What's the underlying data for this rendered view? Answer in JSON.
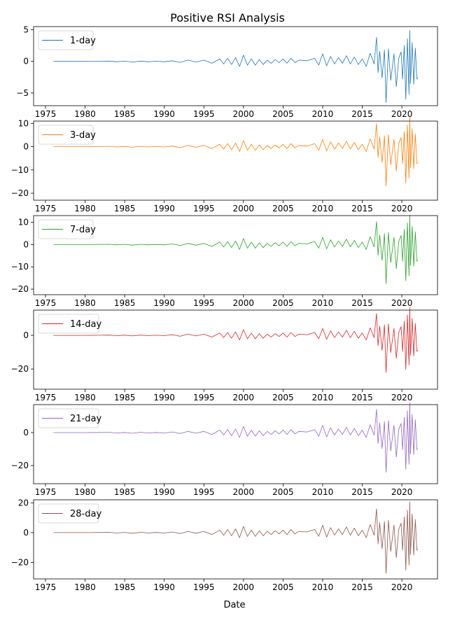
{
  "figure": {
    "title": "Positive RSI Analysis",
    "xlabel": "Date"
  },
  "chart_data": [
    {
      "type": "line",
      "series": [
        {
          "name": "1-day",
          "color": "#1f77b4",
          "scale": 1
        }
      ],
      "x_ticks": [
        "1975",
        "1980",
        "1985",
        "1990",
        "1995",
        "2000",
        "2005",
        "2010",
        "2015",
        "2020"
      ],
      "y_ticks": [
        5,
        0,
        -5
      ],
      "ylim": [
        -7,
        5.5
      ],
      "xlim": [
        1973.5,
        2024.5
      ],
      "legend_loc": "upper left",
      "grid": false
    },
    {
      "type": "line",
      "series": [
        {
          "name": "3-day",
          "color": "#ff7f0e",
          "scale": 2.6
        }
      ],
      "x_ticks": [
        "1975",
        "1980",
        "1985",
        "1990",
        "1995",
        "2000",
        "2005",
        "2010",
        "2015",
        "2020"
      ],
      "y_ticks": [
        10,
        0,
        -10,
        -20
      ],
      "ylim": [
        -23,
        11
      ],
      "xlim": [
        1973.5,
        2024.5
      ],
      "legend_loc": "upper left",
      "grid": false
    },
    {
      "type": "line",
      "series": [
        {
          "name": "7-day",
          "color": "#2ca02c",
          "scale": 2.7
        }
      ],
      "x_ticks": [
        "1975",
        "1980",
        "1985",
        "1990",
        "1995",
        "2000",
        "2005",
        "2010",
        "2015",
        "2020"
      ],
      "y_ticks": [
        10,
        0,
        -10,
        -20
      ],
      "ylim": [
        -22.5,
        13
      ],
      "xlim": [
        1973.5,
        2024.5
      ],
      "legend_loc": "upper left",
      "grid": false
    },
    {
      "type": "line",
      "series": [
        {
          "name": "14-day",
          "color": "#d62728",
          "scale": 3.4
        }
      ],
      "x_ticks": [
        "1975",
        "1980",
        "1985",
        "1990",
        "1995",
        "2000",
        "2005",
        "2010",
        "2015",
        "2020"
      ],
      "y_ticks": [
        0,
        -20
      ],
      "ylim": [
        -32,
        15
      ],
      "xlim": [
        1973.5,
        2024.5
      ],
      "legend_loc": "upper left",
      "grid": false
    },
    {
      "type": "line",
      "series": [
        {
          "name": "21-day",
          "color": "#9467bd",
          "scale": 3.7
        }
      ],
      "x_ticks": [
        "1975",
        "1980",
        "1985",
        "1990",
        "1995",
        "2000",
        "2005",
        "2010",
        "2015",
        "2020"
      ],
      "y_ticks": [
        0,
        -20
      ],
      "ylim": [
        -31,
        17
      ],
      "xlim": [
        1973.5,
        2024.5
      ],
      "legend_loc": "upper left",
      "grid": false
    },
    {
      "type": "line",
      "series": [
        {
          "name": "28-day",
          "color": "#8c564b",
          "scale": 4.2
        }
      ],
      "x_ticks": [
        "1975",
        "1980",
        "1985",
        "1990",
        "1995",
        "2000",
        "2005",
        "2010",
        "2015",
        "2020"
      ],
      "y_ticks": [
        20,
        0,
        -20
      ],
      "ylim": [
        -31,
        22
      ],
      "xlim": [
        1973.5,
        2024.5
      ],
      "legend_loc": "upper left",
      "grid": false
    }
  ],
  "base_series": {
    "x": [
      1976.0,
      1978.0,
      1980.0,
      1982.0,
      1983.0,
      1984.0,
      1985.0,
      1986.0,
      1987.0,
      1988.0,
      1989.0,
      1990.0,
      1991.0,
      1992.0,
      1993.0,
      1994.0,
      1995.0,
      1996.0,
      1997.0,
      1997.5,
      1998.0,
      1998.5,
      1999.0,
      1999.5,
      2000.0,
      2000.5,
      2001.0,
      2001.5,
      2002.0,
      2002.5,
      2003.0,
      2003.5,
      2004.0,
      2004.5,
      2005.0,
      2005.5,
      2006.0,
      2006.5,
      2007.0,
      2008.0,
      2009.0,
      2009.5,
      2010.0,
      2010.5,
      2011.0,
      2011.5,
      2012.0,
      2012.5,
      2013.0,
      2013.5,
      2014.0,
      2014.5,
      2015.0,
      2015.5,
      2016.0,
      2016.5,
      2016.8,
      2017.0,
      2017.2,
      2017.5,
      2017.8,
      2018.0,
      2018.3,
      2018.6,
      2019.0,
      2019.3,
      2019.6,
      2019.9,
      2020.1,
      2020.3,
      2020.5,
      2020.7,
      2020.9,
      2021.0,
      2021.1,
      2021.3,
      2021.5,
      2021.7,
      2021.9,
      2022.0
    ],
    "y": [
      0.0,
      0.0,
      0.0,
      0.02,
      0.05,
      -0.05,
      0.03,
      -0.1,
      0.05,
      -0.05,
      0.02,
      -0.05,
      0.1,
      -0.15,
      0.2,
      -0.1,
      0.2,
      -0.3,
      0.4,
      -0.4,
      0.5,
      -0.5,
      0.6,
      -0.8,
      1.0,
      -0.6,
      0.4,
      -0.6,
      0.3,
      -0.5,
      0.2,
      -0.3,
      0.3,
      -0.2,
      0.4,
      -0.3,
      0.5,
      -0.2,
      0.2,
      0.1,
      0.5,
      -0.6,
      1.2,
      -0.7,
      0.8,
      -0.4,
      0.6,
      -0.3,
      0.9,
      -0.4,
      0.7,
      -0.5,
      0.4,
      -0.8,
      1.3,
      -0.4,
      3.8,
      -1.8,
      1.6,
      -2.6,
      1.8,
      -6.5,
      2.0,
      -3.0,
      1.2,
      -4.0,
      0.5,
      1.5,
      -2.8,
      2.5,
      -6.0,
      3.6,
      -5.2,
      4.9,
      -3.5,
      3.0,
      -3.6,
      2.1,
      -2.8,
      -2.6
    ]
  }
}
